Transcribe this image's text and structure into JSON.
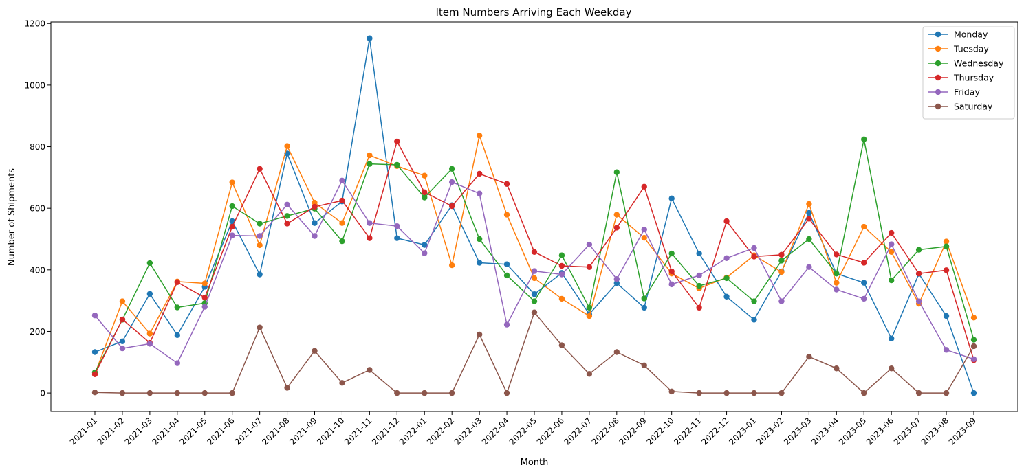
{
  "chart_data": {
    "type": "line",
    "title": "Item Numbers Arriving Each Weekday",
    "xlabel": "Month",
    "ylabel": "Number of Shipments",
    "ylim": [
      -60,
      1205
    ],
    "yticks": [
      0,
      200,
      400,
      600,
      800,
      1000,
      1200
    ],
    "grid": false,
    "legend_position": "upper right",
    "categories": [
      "2021-01",
      "2021-02",
      "2021-03",
      "2021-04",
      "2021-05",
      "2021-06",
      "2021-07",
      "2021-08",
      "2021-09",
      "2021-10",
      "2021-11",
      "2021-12",
      "2022-01",
      "2022-02",
      "2022-03",
      "2022-04",
      "2022-05",
      "2022-06",
      "2022-07",
      "2022-08",
      "2022-09",
      "2022-10",
      "2022-11",
      "2022-12",
      "2023-01",
      "2023-02",
      "2023-03",
      "2023-04",
      "2023-05",
      "2023-06",
      "2023-07",
      "2023-08",
      "2023-09"
    ],
    "series": [
      {
        "name": "Monday",
        "color": "#1f77b4",
        "values": [
          133,
          168,
          322,
          188,
          345,
          558,
          385,
          778,
          552,
          622,
          1152,
          503,
          481,
          610,
          423,
          418,
          321,
          390,
          256,
          357,
          277,
          632,
          453,
          313,
          238,
          395,
          585,
          388,
          358,
          177,
          387,
          250,
          0
        ]
      },
      {
        "name": "Tuesday",
        "color": "#ff7f0e",
        "values": [
          62,
          298,
          193,
          362,
          356,
          684,
          480,
          802,
          618,
          552,
          772,
          737,
          706,
          415,
          836,
          579,
          373,
          306,
          250,
          579,
          504,
          388,
          340,
          375,
          447,
          393,
          614,
          358,
          540,
          458,
          290,
          492,
          245
        ]
      },
      {
        "name": "Wednesday",
        "color": "#2ca02c",
        "values": [
          67,
          238,
          422,
          278,
          292,
          607,
          550,
          575,
          599,
          493,
          744,
          741,
          635,
          728,
          500,
          382,
          298,
          447,
          277,
          717,
          307,
          453,
          348,
          373,
          298,
          430,
          500,
          388,
          824,
          366,
          465,
          476,
          173
        ]
      },
      {
        "name": "Thursday",
        "color": "#d62728",
        "values": [
          61,
          239,
          163,
          360,
          310,
          540,
          728,
          550,
          605,
          625,
          503,
          817,
          652,
          607,
          712,
          679,
          458,
          413,
          409,
          537,
          670,
          395,
          277,
          558,
          443,
          449,
          566,
          450,
          423,
          520,
          388,
          399,
          107
        ]
      },
      {
        "name": "Friday",
        "color": "#9467bd",
        "values": [
          252,
          145,
          160,
          97,
          280,
          512,
          510,
          612,
          510,
          690,
          552,
          542,
          454,
          685,
          648,
          222,
          396,
          385,
          482,
          370,
          531,
          353,
          382,
          438,
          471,
          298,
          409,
          336,
          306,
          483,
          298,
          140,
          110
        ]
      },
      {
        "name": "Saturday",
        "color": "#8c564b",
        "values": [
          2,
          0,
          0,
          0,
          0,
          0,
          213,
          17,
          137,
          33,
          75,
          0,
          0,
          0,
          190,
          0,
          262,
          155,
          62,
          133,
          90,
          5,
          0,
          0,
          0,
          0,
          118,
          80,
          0,
          80,
          0,
          0,
          152
        ]
      }
    ]
  }
}
